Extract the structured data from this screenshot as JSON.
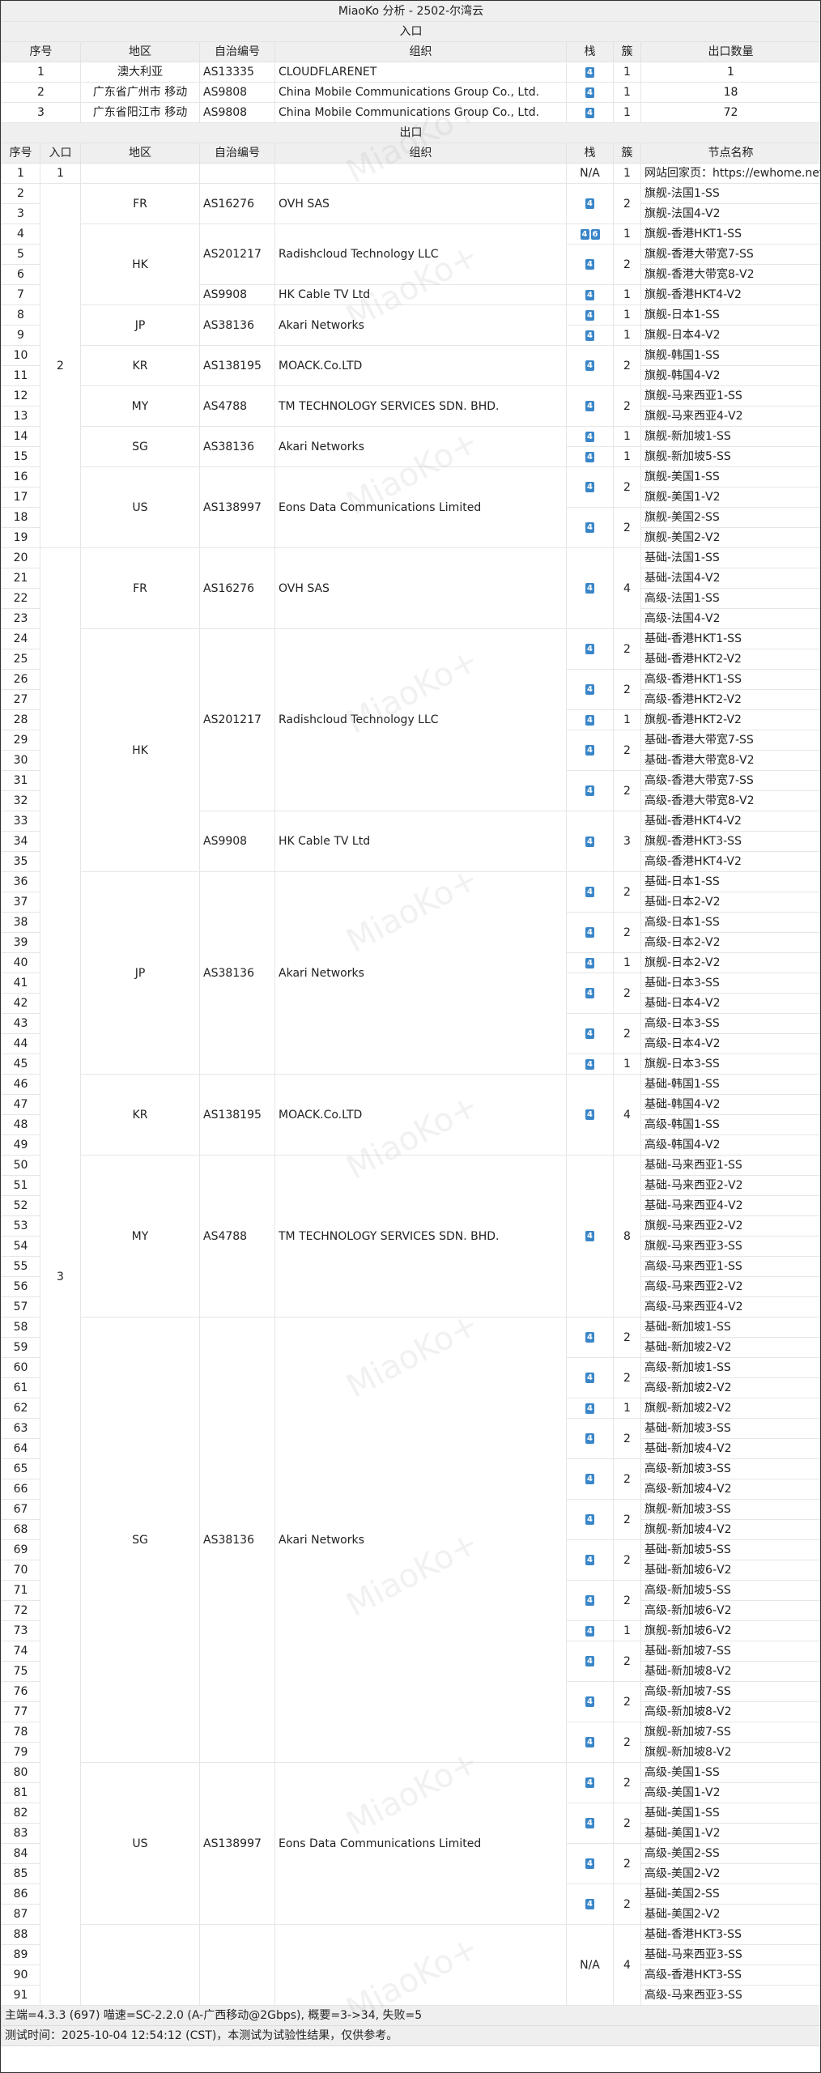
{
  "title": "MiaoKo 分析 - 2502-尔湾云",
  "watermark": "MiaoKo+",
  "colors": {
    "badge": "#3a86c8",
    "header_bg": "#efefef"
  },
  "entry": {
    "section_label": "入口",
    "headers": [
      "序号",
      "地区",
      "自治编号",
      "组织",
      "栈",
      "簇",
      "出口数量"
    ],
    "rows": [
      {
        "no": "1",
        "region": "澳大利亚",
        "asn": "AS13335",
        "org": "CLOUDFLARENET",
        "stack": [
          "4"
        ],
        "cluster": "1",
        "exits": "1"
      },
      {
        "no": "2",
        "region": "广东省广州市 移动",
        "asn": "AS9808",
        "org": "China Mobile Communications Group Co., Ltd.",
        "stack": [
          "4"
        ],
        "cluster": "1",
        "exits": "18"
      },
      {
        "no": "3",
        "region": "广东省阳江市 移动",
        "asn": "AS9808",
        "org": "China Mobile Communications Group Co., Ltd.",
        "stack": [
          "4"
        ],
        "cluster": "1",
        "exits": "72"
      }
    ]
  },
  "exit": {
    "section_label": "出口",
    "headers": [
      "序号",
      "入口",
      "地区",
      "自治编号",
      "组织",
      "栈",
      "簇",
      "节点名称"
    ],
    "entries": [
      {
        "entry": "1",
        "regions": [
          {
            "region": "",
            "asns": [
              {
                "asn": "",
                "org": "",
                "clusters": [
                  {
                    "stack": "N/A",
                    "nodes": [
                      "网站回家页：https://ewhome.net"
                    ]
                  }
                ]
              }
            ]
          }
        ]
      },
      {
        "entry": "2",
        "regions": [
          {
            "region": "FR",
            "asns": [
              {
                "asn": "AS16276",
                "org": "OVH SAS",
                "clusters": [
                  {
                    "stack": [
                      "4"
                    ],
                    "nodes": [
                      "旗舰-法国1-SS",
                      "旗舰-法国4-V2"
                    ]
                  }
                ]
              }
            ]
          },
          {
            "region": "HK",
            "asns": [
              {
                "asn": "AS201217",
                "org": "Radishcloud Technology LLC",
                "clusters": [
                  {
                    "stack": [
                      "4",
                      "6"
                    ],
                    "nodes": [
                      "旗舰-香港HKT1-SS"
                    ]
                  },
                  {
                    "stack": [
                      "4"
                    ],
                    "nodes": [
                      "旗舰-香港大带宽7-SS",
                      "旗舰-香港大带宽8-V2"
                    ]
                  }
                ]
              },
              {
                "asn": "AS9908",
                "org": "HK Cable TV Ltd",
                "clusters": [
                  {
                    "stack": [
                      "4"
                    ],
                    "nodes": [
                      "旗舰-香港HKT4-V2"
                    ]
                  }
                ]
              }
            ]
          },
          {
            "region": "JP",
            "asns": [
              {
                "asn": "AS38136",
                "org": "Akari Networks",
                "clusters": [
                  {
                    "stack": [
                      "4"
                    ],
                    "nodes": [
                      "旗舰-日本1-SS"
                    ]
                  },
                  {
                    "stack": [
                      "4"
                    ],
                    "nodes": [
                      "旗舰-日本4-V2"
                    ]
                  }
                ]
              }
            ]
          },
          {
            "region": "KR",
            "asns": [
              {
                "asn": "AS138195",
                "org": "MOACK.Co.LTD",
                "clusters": [
                  {
                    "stack": [
                      "4"
                    ],
                    "nodes": [
                      "旗舰-韩国1-SS",
                      "旗舰-韩国4-V2"
                    ]
                  }
                ]
              }
            ]
          },
          {
            "region": "MY",
            "asns": [
              {
                "asn": "AS4788",
                "org": "TM TECHNOLOGY SERVICES SDN. BHD.",
                "clusters": [
                  {
                    "stack": [
                      "4"
                    ],
                    "nodes": [
                      "旗舰-马来西亚1-SS",
                      "旗舰-马来西亚4-V2"
                    ]
                  }
                ]
              }
            ]
          },
          {
            "region": "SG",
            "asns": [
              {
                "asn": "AS38136",
                "org": "Akari Networks",
                "clusters": [
                  {
                    "stack": [
                      "4"
                    ],
                    "nodes": [
                      "旗舰-新加坡1-SS"
                    ]
                  },
                  {
                    "stack": [
                      "4"
                    ],
                    "nodes": [
                      "旗舰-新加坡5-SS"
                    ]
                  }
                ]
              }
            ]
          },
          {
            "region": "US",
            "asns": [
              {
                "asn": "AS138997",
                "org": "Eons Data Communications Limited",
                "clusters": [
                  {
                    "stack": [
                      "4"
                    ],
                    "nodes": [
                      "旗舰-美国1-SS",
                      "旗舰-美国1-V2"
                    ]
                  },
                  {
                    "stack": [
                      "4"
                    ],
                    "nodes": [
                      "旗舰-美国2-SS",
                      "旗舰-美国2-V2"
                    ]
                  }
                ]
              }
            ]
          }
        ]
      },
      {
        "entry": "3",
        "regions": [
          {
            "region": "FR",
            "asns": [
              {
                "asn": "AS16276",
                "org": "OVH SAS",
                "clusters": [
                  {
                    "stack": [
                      "4"
                    ],
                    "nodes": [
                      "基础-法国1-SS",
                      "基础-法国4-V2",
                      "高级-法国1-SS",
                      "高级-法国4-V2"
                    ]
                  }
                ]
              }
            ]
          },
          {
            "region": "HK",
            "asns": [
              {
                "asn": "AS201217",
                "org": "Radishcloud Technology LLC",
                "clusters": [
                  {
                    "stack": [
                      "4"
                    ],
                    "nodes": [
                      "基础-香港HKT1-SS",
                      "基础-香港HKT2-V2"
                    ]
                  },
                  {
                    "stack": [
                      "4"
                    ],
                    "nodes": [
                      "高级-香港HKT1-SS",
                      "高级-香港HKT2-V2"
                    ]
                  },
                  {
                    "stack": [
                      "4"
                    ],
                    "nodes": [
                      "旗舰-香港HKT2-V2"
                    ]
                  },
                  {
                    "stack": [
                      "4"
                    ],
                    "nodes": [
                      "基础-香港大带宽7-SS",
                      "基础-香港大带宽8-V2"
                    ]
                  },
                  {
                    "stack": [
                      "4"
                    ],
                    "nodes": [
                      "高级-香港大带宽7-SS",
                      "高级-香港大带宽8-V2"
                    ]
                  }
                ]
              },
              {
                "asn": "AS9908",
                "org": "HK Cable TV Ltd",
                "clusters": [
                  {
                    "stack": [
                      "4"
                    ],
                    "nodes": [
                      "基础-香港HKT4-V2",
                      "旗舰-香港HKT3-SS",
                      "高级-香港HKT4-V2"
                    ]
                  }
                ]
              }
            ]
          },
          {
            "region": "JP",
            "asns": [
              {
                "asn": "AS38136",
                "org": "Akari Networks",
                "clusters": [
                  {
                    "stack": [
                      "4"
                    ],
                    "nodes": [
                      "基础-日本1-SS",
                      "基础-日本2-V2"
                    ]
                  },
                  {
                    "stack": [
                      "4"
                    ],
                    "nodes": [
                      "高级-日本1-SS",
                      "高级-日本2-V2"
                    ]
                  },
                  {
                    "stack": [
                      "4"
                    ],
                    "nodes": [
                      "旗舰-日本2-V2"
                    ]
                  },
                  {
                    "stack": [
                      "4"
                    ],
                    "nodes": [
                      "基础-日本3-SS",
                      "基础-日本4-V2"
                    ]
                  },
                  {
                    "stack": [
                      "4"
                    ],
                    "nodes": [
                      "高级-日本3-SS",
                      "高级-日本4-V2"
                    ]
                  },
                  {
                    "stack": [
                      "4"
                    ],
                    "nodes": [
                      "旗舰-日本3-SS"
                    ]
                  }
                ]
              }
            ]
          },
          {
            "region": "KR",
            "asns": [
              {
                "asn": "AS138195",
                "org": "MOACK.Co.LTD",
                "clusters": [
                  {
                    "stack": [
                      "4"
                    ],
                    "nodes": [
                      "基础-韩国1-SS",
                      "基础-韩国4-V2",
                      "高级-韩国1-SS",
                      "高级-韩国4-V2"
                    ]
                  }
                ]
              }
            ]
          },
          {
            "region": "MY",
            "asns": [
              {
                "asn": "AS4788",
                "org": "TM TECHNOLOGY SERVICES SDN. BHD.",
                "clusters": [
                  {
                    "stack": [
                      "4"
                    ],
                    "nodes": [
                      "基础-马来西亚1-SS",
                      "基础-马来西亚2-V2",
                      "基础-马来西亚4-V2",
                      "旗舰-马来西亚2-V2",
                      "旗舰-马来西亚3-SS",
                      "高级-马来西亚1-SS",
                      "高级-马来西亚2-V2",
                      "高级-马来西亚4-V2"
                    ]
                  }
                ]
              }
            ]
          },
          {
            "region": "SG",
            "asns": [
              {
                "asn": "AS38136",
                "org": "Akari Networks",
                "clusters": [
                  {
                    "stack": [
                      "4"
                    ],
                    "nodes": [
                      "基础-新加坡1-SS",
                      "基础-新加坡2-V2"
                    ]
                  },
                  {
                    "stack": [
                      "4"
                    ],
                    "nodes": [
                      "高级-新加坡1-SS",
                      "高级-新加坡2-V2"
                    ]
                  },
                  {
                    "stack": [
                      "4"
                    ],
                    "nodes": [
                      "旗舰-新加坡2-V2"
                    ]
                  },
                  {
                    "stack": [
                      "4"
                    ],
                    "nodes": [
                      "基础-新加坡3-SS",
                      "基础-新加坡4-V2"
                    ]
                  },
                  {
                    "stack": [
                      "4"
                    ],
                    "nodes": [
                      "高级-新加坡3-SS",
                      "高级-新加坡4-V2"
                    ]
                  },
                  {
                    "stack": [
                      "4"
                    ],
                    "nodes": [
                      "旗舰-新加坡3-SS",
                      "旗舰-新加坡4-V2"
                    ]
                  },
                  {
                    "stack": [
                      "4"
                    ],
                    "nodes": [
                      "基础-新加坡5-SS",
                      "基础-新加坡6-V2"
                    ]
                  },
                  {
                    "stack": [
                      "4"
                    ],
                    "nodes": [
                      "高级-新加坡5-SS",
                      "高级-新加坡6-V2"
                    ]
                  },
                  {
                    "stack": [
                      "4"
                    ],
                    "nodes": [
                      "旗舰-新加坡6-V2"
                    ]
                  },
                  {
                    "stack": [
                      "4"
                    ],
                    "nodes": [
                      "基础-新加坡7-SS",
                      "基础-新加坡8-V2"
                    ]
                  },
                  {
                    "stack": [
                      "4"
                    ],
                    "nodes": [
                      "高级-新加坡7-SS",
                      "高级-新加坡8-V2"
                    ]
                  },
                  {
                    "stack": [
                      "4"
                    ],
                    "nodes": [
                      "旗舰-新加坡7-SS",
                      "旗舰-新加坡8-V2"
                    ]
                  }
                ]
              }
            ]
          },
          {
            "region": "US",
            "asns": [
              {
                "asn": "AS138997",
                "org": "Eons Data Communications Limited",
                "clusters": [
                  {
                    "stack": [
                      "4"
                    ],
                    "nodes": [
                      "高级-美国1-SS",
                      "高级-美国1-V2"
                    ]
                  },
                  {
                    "stack": [
                      "4"
                    ],
                    "nodes": [
                      "基础-美国1-SS",
                      "基础-美国1-V2"
                    ]
                  },
                  {
                    "stack": [
                      "4"
                    ],
                    "nodes": [
                      "高级-美国2-SS",
                      "高级-美国2-V2"
                    ]
                  },
                  {
                    "stack": [
                      "4"
                    ],
                    "nodes": [
                      "基础-美国2-SS",
                      "基础-美国2-V2"
                    ]
                  }
                ]
              }
            ]
          },
          {
            "region": "",
            "asns": [
              {
                "asn": "",
                "org": "",
                "clusters": [
                  {
                    "stack": "N/A",
                    "nodes": [
                      "基础-香港HKT3-SS",
                      "基础-马来西亚3-SS",
                      "高级-香港HKT3-SS",
                      "高级-马来西亚3-SS"
                    ]
                  }
                ]
              }
            ]
          }
        ]
      }
    ]
  },
  "footer": {
    "line1": "主端=4.3.3 (697) 喵速=SC-2.2.0 (A-广西移动@2Gbps), 概要=3->34, 失败=5",
    "line2": "测试时间：2025-10-04 12:54:12 (CST)，本测试为试验性结果，仅供参考。"
  }
}
